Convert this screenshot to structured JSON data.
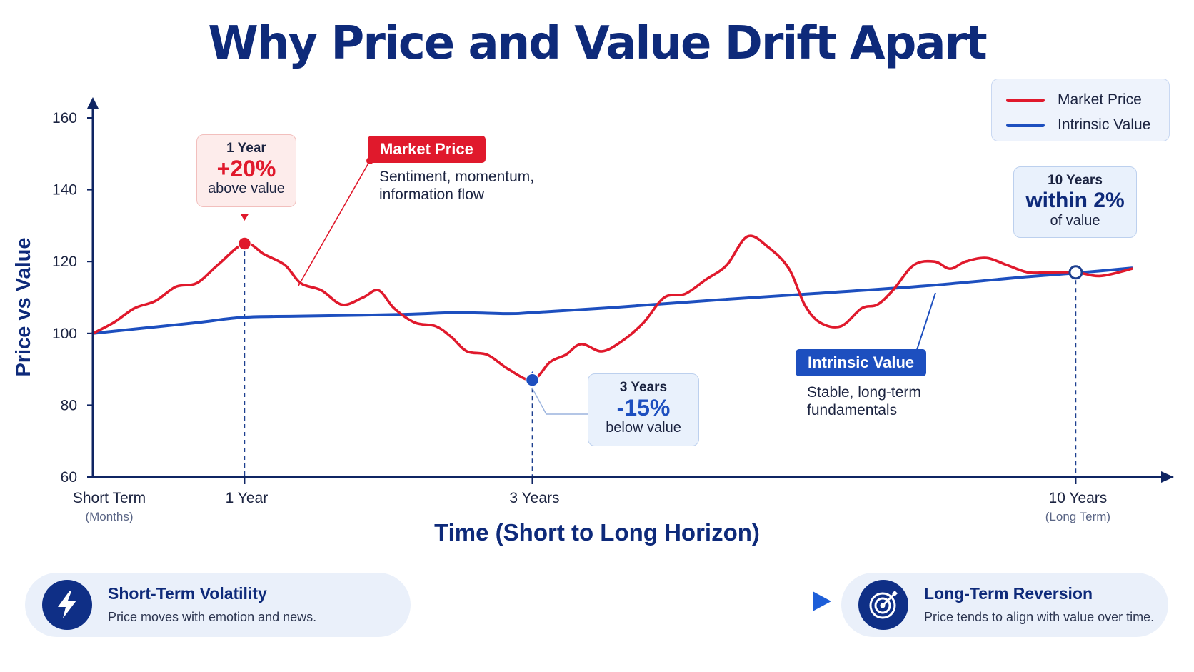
{
  "title": "Why Price and Value Drift Apart",
  "colors": {
    "price": "#e0192c",
    "value": "#1d4fbf",
    "navy": "#0e2a7a",
    "axis": "#0f2563"
  },
  "legend": {
    "price_label": "Market Price",
    "value_label": "Intrinsic Value"
  },
  "chart_data": {
    "type": "line",
    "ylabel": "Price vs Value",
    "xlabel": "Time (Short to Long Horizon)",
    "ylim": [
      60,
      160
    ],
    "yticks": [
      60,
      80,
      100,
      120,
      140,
      160
    ],
    "x_range": [
      0,
      1
    ],
    "xticks": [
      {
        "x": 0.0,
        "label": "Short Term",
        "sub": "(Months)"
      },
      {
        "x": 0.146,
        "label": "1 Year",
        "sub": ""
      },
      {
        "x": 0.423,
        "label": "3 Years",
        "sub": ""
      },
      {
        "x": 0.946,
        "label": "10 Years",
        "sub": "(Long Term)"
      }
    ],
    "series": [
      {
        "name": "Market Price",
        "color": "#e0192c",
        "x": [
          0,
          0.02,
          0.04,
          0.06,
          0.08,
          0.1,
          0.12,
          0.146,
          0.165,
          0.185,
          0.2,
          0.22,
          0.24,
          0.26,
          0.275,
          0.29,
          0.31,
          0.33,
          0.345,
          0.36,
          0.38,
          0.4,
          0.423,
          0.44,
          0.455,
          0.47,
          0.49,
          0.51,
          0.53,
          0.55,
          0.57,
          0.59,
          0.61,
          0.63,
          0.65,
          0.67,
          0.685,
          0.7,
          0.72,
          0.74,
          0.755,
          0.77,
          0.79,
          0.81,
          0.825,
          0.84,
          0.86,
          0.88,
          0.9,
          0.92,
          0.946,
          0.97,
          1.0
        ],
        "values": [
          100,
          103,
          107,
          109,
          113,
          114,
          119,
          125,
          122,
          119,
          114,
          112,
          108,
          110,
          112,
          107,
          103,
          102,
          99,
          95,
          94,
          90,
          87,
          92,
          94,
          97,
          95,
          98,
          103,
          110,
          111,
          115,
          119,
          127,
          124,
          118,
          108,
          103,
          102,
          107,
          108,
          112,
          119,
          120,
          118,
          120,
          121,
          119,
          117,
          117,
          117,
          116,
          118
        ]
      },
      {
        "name": "Intrinsic Value",
        "color": "#1d4fbf",
        "x": [
          0,
          0.05,
          0.1,
          0.146,
          0.2,
          0.3,
          0.35,
          0.4,
          0.423,
          0.5,
          0.6,
          0.7,
          0.8,
          0.9,
          0.946,
          1.0
        ],
        "values": [
          100,
          101.5,
          103,
          104.5,
          104.8,
          105.3,
          105.8,
          105.5,
          105.8,
          107.2,
          109.3,
          111.2,
          113.2,
          115.8,
          116.8,
          118.2
        ]
      }
    ],
    "annotations": [
      {
        "label": "1 Year",
        "value": "+20%",
        "text": "above value",
        "x": 0.146,
        "y": 125
      },
      {
        "label": "3 Years",
        "value": "-15%",
        "text": "below value",
        "x": 0.423,
        "y": 87
      },
      {
        "label": "10 Years",
        "value": "within 2%",
        "text": "of value",
        "x": 0.946,
        "y": 117
      }
    ],
    "series_notes": [
      {
        "tag": "Market Price",
        "line1": "Sentiment, momentum,",
        "line2": "information flow"
      },
      {
        "tag": "Intrinsic Value",
        "line1": "Stable, long-term",
        "line2": "fundamentals"
      }
    ]
  },
  "footer": {
    "left": {
      "title": "Short-Term Volatility",
      "desc": "Price moves with emotion and news.",
      "icon": "lightning-bolt-icon"
    },
    "right": {
      "title": "Long-Term Reversion",
      "desc": "Price tends to align with value over time.",
      "icon": "target-icon"
    }
  }
}
